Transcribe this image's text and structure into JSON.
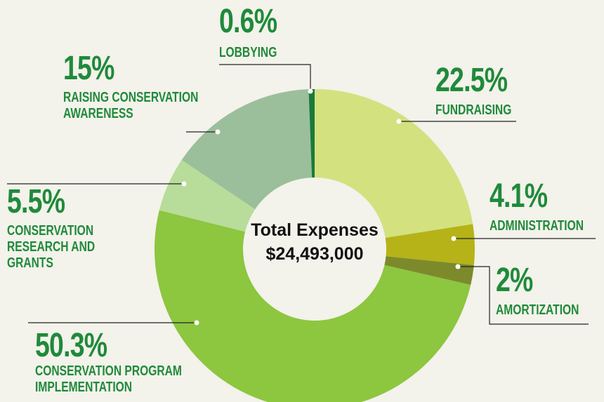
{
  "chart_data": {
    "type": "donut",
    "center_text": [
      "Total Expenses",
      "$24,493,000"
    ],
    "categories": [
      "FUNDRAISING",
      "ADMINISTRATION",
      "AMORTIZATION",
      "CONSERVATION PROGRAM IMPLEMENTATION",
      "CONSERVATION RESEARCH AND GRANTS",
      "RAISING CONSERVATION AWARENESS",
      "LOBBYING"
    ],
    "values": [
      22.5,
      4.1,
      2,
      50.3,
      5.5,
      15,
      0.6
    ],
    "value_labels": [
      "22.5%",
      "4.1%",
      "2%",
      "50.3%",
      "5.5%",
      "15%",
      "0.6%"
    ],
    "colors": [
      "#d4e17f",
      "#b5b317",
      "#7d8a2b",
      "#8dc63f",
      "#b8dc9a",
      "#9bbf9a",
      "#1a7a3a"
    ]
  }
}
